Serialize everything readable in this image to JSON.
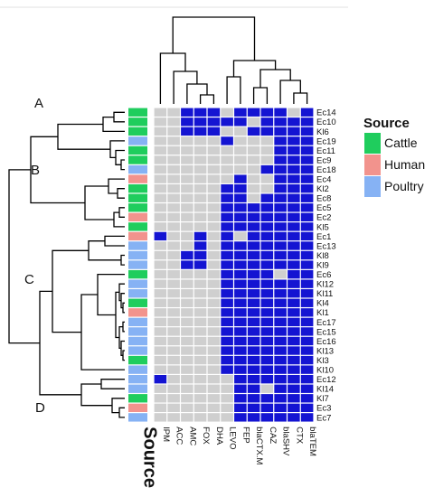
{
  "chart_data": {
    "type": "heatmap",
    "columns": [
      "IPM",
      "ACC",
      "AMC",
      "FOX",
      "DHA",
      "LEVO",
      "FEP",
      "blaCTX.M",
      "CAZ",
      "blaSHV",
      "CTX",
      "blaTEM"
    ],
    "rows": [
      {
        "label": "Ec14",
        "source": "Cattle",
        "cells": [
          0,
          0,
          1,
          1,
          1,
          0,
          1,
          1,
          1,
          1,
          0,
          1
        ]
      },
      {
        "label": "Ec10",
        "source": "Cattle",
        "cells": [
          0,
          0,
          1,
          1,
          1,
          1,
          1,
          0,
          1,
          1,
          1,
          1
        ]
      },
      {
        "label": "Kl6",
        "source": "Cattle",
        "cells": [
          0,
          0,
          1,
          1,
          1,
          0,
          0,
          1,
          1,
          1,
          1,
          1
        ]
      },
      {
        "label": "Ec19",
        "source": "Poultry",
        "cells": [
          0,
          0,
          0,
          0,
          0,
          1,
          0,
          0,
          0,
          1,
          1,
          1
        ]
      },
      {
        "label": "Ec11",
        "source": "Cattle",
        "cells": [
          0,
          0,
          0,
          0,
          0,
          0,
          0,
          0,
          0,
          1,
          1,
          1
        ]
      },
      {
        "label": "Ec9",
        "source": "Cattle",
        "cells": [
          0,
          0,
          0,
          0,
          0,
          0,
          0,
          0,
          0,
          1,
          1,
          1
        ]
      },
      {
        "label": "Ec18",
        "source": "Poultry",
        "cells": [
          0,
          0,
          0,
          0,
          0,
          0,
          0,
          0,
          1,
          1,
          1,
          1
        ]
      },
      {
        "label": "Ec4",
        "source": "Human",
        "cells": [
          0,
          0,
          0,
          0,
          0,
          0,
          1,
          0,
          0,
          1,
          1,
          1
        ]
      },
      {
        "label": "Kl2",
        "source": "Cattle",
        "cells": [
          0,
          0,
          0,
          0,
          0,
          1,
          1,
          0,
          0,
          1,
          1,
          1
        ]
      },
      {
        "label": "Ec8",
        "source": "Cattle",
        "cells": [
          0,
          0,
          0,
          0,
          0,
          1,
          1,
          0,
          1,
          1,
          1,
          1
        ]
      },
      {
        "label": "Ec5",
        "source": "Cattle",
        "cells": [
          0,
          0,
          0,
          0,
          0,
          1,
          1,
          1,
          1,
          1,
          1,
          1
        ]
      },
      {
        "label": "Ec2",
        "source": "Human",
        "cells": [
          0,
          0,
          0,
          0,
          0,
          1,
          1,
          1,
          1,
          1,
          1,
          1
        ]
      },
      {
        "label": "Kl5",
        "source": "Cattle",
        "cells": [
          0,
          0,
          0,
          0,
          0,
          1,
          1,
          1,
          1,
          1,
          1,
          1
        ]
      },
      {
        "label": "Ec1",
        "source": "Human",
        "cells": [
          1,
          0,
          0,
          1,
          0,
          1,
          0,
          1,
          1,
          1,
          1,
          1
        ]
      },
      {
        "label": "Ec13",
        "source": "Poultry",
        "cells": [
          0,
          0,
          0,
          1,
          0,
          1,
          1,
          1,
          1,
          1,
          1,
          1
        ]
      },
      {
        "label": "Kl8",
        "source": "Poultry",
        "cells": [
          0,
          0,
          1,
          1,
          0,
          1,
          1,
          1,
          1,
          1,
          1,
          1
        ]
      },
      {
        "label": "Kl9",
        "source": "Poultry",
        "cells": [
          0,
          0,
          1,
          1,
          0,
          1,
          1,
          1,
          1,
          1,
          1,
          1
        ]
      },
      {
        "label": "Ec6",
        "source": "Cattle",
        "cells": [
          0,
          0,
          0,
          0,
          0,
          1,
          1,
          1,
          1,
          0,
          1,
          1
        ]
      },
      {
        "label": "Kl12",
        "source": "Poultry",
        "cells": [
          0,
          0,
          0,
          0,
          0,
          1,
          1,
          1,
          1,
          1,
          1,
          1
        ]
      },
      {
        "label": "Kl11",
        "source": "Poultry",
        "cells": [
          0,
          0,
          0,
          0,
          0,
          1,
          1,
          1,
          1,
          1,
          1,
          1
        ]
      },
      {
        "label": "Kl4",
        "source": "Cattle",
        "cells": [
          0,
          0,
          0,
          0,
          0,
          1,
          1,
          1,
          1,
          1,
          1,
          1
        ]
      },
      {
        "label": "Kl1",
        "source": "Human",
        "cells": [
          0,
          0,
          0,
          0,
          0,
          1,
          1,
          1,
          1,
          1,
          1,
          1
        ]
      },
      {
        "label": "Ec17",
        "source": "Poultry",
        "cells": [
          0,
          0,
          0,
          0,
          0,
          1,
          1,
          1,
          1,
          1,
          1,
          1
        ]
      },
      {
        "label": "Ec15",
        "source": "Poultry",
        "cells": [
          0,
          0,
          0,
          0,
          0,
          1,
          1,
          1,
          1,
          1,
          1,
          1
        ]
      },
      {
        "label": "Ec16",
        "source": "Poultry",
        "cells": [
          0,
          0,
          0,
          0,
          0,
          1,
          1,
          1,
          1,
          1,
          1,
          1
        ]
      },
      {
        "label": "Kl13",
        "source": "Poultry",
        "cells": [
          0,
          0,
          0,
          0,
          0,
          1,
          1,
          1,
          1,
          1,
          1,
          1
        ]
      },
      {
        "label": "Kl3",
        "source": "Cattle",
        "cells": [
          0,
          0,
          0,
          0,
          0,
          1,
          1,
          1,
          1,
          1,
          1,
          1
        ]
      },
      {
        "label": "Kl10",
        "source": "Poultry",
        "cells": [
          0,
          0,
          0,
          0,
          0,
          1,
          1,
          1,
          1,
          1,
          1,
          1
        ]
      },
      {
        "label": "Ec12",
        "source": "Poultry",
        "cells": [
          1,
          0,
          0,
          0,
          0,
          0,
          1,
          1,
          1,
          1,
          1,
          1
        ]
      },
      {
        "label": "Kl14",
        "source": "Poultry",
        "cells": [
          0,
          0,
          0,
          0,
          0,
          0,
          1,
          1,
          0,
          1,
          1,
          1
        ]
      },
      {
        "label": "Kl7",
        "source": "Cattle",
        "cells": [
          0,
          0,
          0,
          0,
          0,
          0,
          1,
          1,
          1,
          1,
          1,
          1
        ]
      },
      {
        "label": "Ec3",
        "source": "Human",
        "cells": [
          0,
          0,
          0,
          0,
          0,
          0,
          1,
          1,
          1,
          1,
          1,
          1
        ]
      },
      {
        "label": "Ec7",
        "source": "Poultry",
        "cells": [
          0,
          0,
          0,
          0,
          0,
          0,
          1,
          1,
          1,
          1,
          1,
          1
        ]
      }
    ],
    "cell_colors": {
      "0": "#cfcfcf",
      "1": "#1414d2"
    },
    "source_axis_label": "Source",
    "legend": {
      "title": "Source",
      "position": "right",
      "entries": [
        {
          "name": "Cattle",
          "color": "#1fcd5d"
        },
        {
          "name": "Human",
          "color": "#f2938d"
        },
        {
          "name": "Poultry",
          "color": "#86b2f4"
        }
      ]
    },
    "clusters": [
      "A",
      "B",
      "C",
      "D"
    ]
  }
}
